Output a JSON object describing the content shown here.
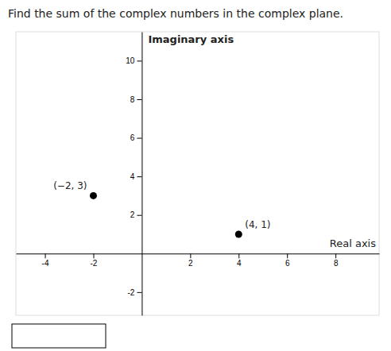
{
  "chart_data": {
    "type": "scatter",
    "title": "Find the sum of the complex numbers in the complex plane.",
    "xlabel": "Real axis",
    "ylabel": "Imaginary axis",
    "x": [
      -2,
      4
    ],
    "values": [
      3,
      1
    ],
    "labels": [
      "(−2, 3)",
      "(4, 1)"
    ],
    "color": "#000000",
    "xlim": [
      -5.2,
      9.8
    ],
    "ylim": [
      -3.2,
      11.5
    ],
    "xticks": [
      -4,
      -2,
      2,
      4,
      6,
      8
    ],
    "yticks": [
      -2,
      2,
      4,
      6,
      8,
      10
    ],
    "grid": false
  }
}
